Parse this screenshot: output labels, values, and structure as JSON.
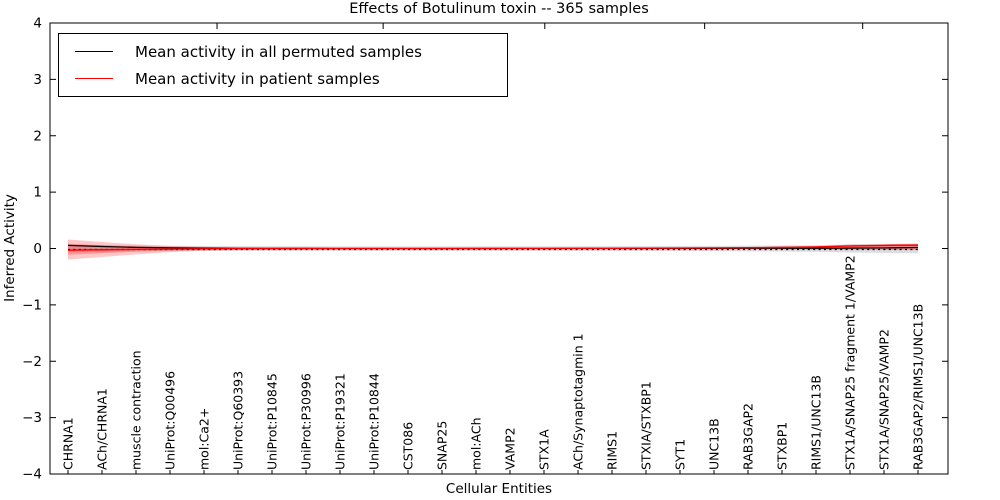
{
  "chart_data": {
    "type": "line",
    "title": "Effects of Botulinum toxin -- 365 samples",
    "xlabel": "Cellular Entities",
    "ylabel": "Inferred Activity",
    "ylim": [
      -4,
      4
    ],
    "ytick_values": [
      4,
      3,
      2,
      1,
      0,
      -1,
      -2,
      -3,
      -4
    ],
    "ytick_labels": [
      "4",
      "3",
      "2",
      "1",
      "0",
      "−1",
      "−2",
      "−3",
      "−4"
    ],
    "grid": false,
    "legend_position": "upper-left",
    "categories": [
      "CHRNA1",
      "ACh/CHRNA1",
      "muscle contraction",
      "UniProt:Q00496",
      "mol:Ca2+",
      "UniProt:Q60393",
      "UniProt:P10845",
      "UniProt:P30996",
      "UniProt:P19321",
      "UniProt:P10844",
      "CST086",
      "SNAP25",
      "mol:ACh",
      "VAMP2",
      "STX1A",
      "ACh/Synaptotagmin 1",
      "RIMS1",
      "STXIA/STXBP1",
      "SYT1",
      "UNC13B",
      "RAB3GAP2",
      "STXBP1",
      "RIMS1/UNC13B",
      "STX1A/SNAP25 fragment 1/VAMP2",
      "STX1A/SNAP25/VAMP2",
      "RAB3GAP2/RIMS1/UNC13B"
    ],
    "series": [
      {
        "name": "Mean activity in all permuted samples",
        "color": "#000000",
        "values": [
          0.055,
          0.035,
          0.02,
          0.012,
          0.006,
          0.003,
          0.002,
          0.002,
          0.001,
          0.001,
          0.001,
          0.001,
          0.001,
          0.001,
          0.001,
          0.001,
          0.001,
          0.002,
          0.002,
          0.002,
          0.003,
          0.003,
          0.004,
          0.006,
          0.01,
          0.018
        ]
      },
      {
        "name": "Mean activity in patient samples",
        "color": "#ff0000",
        "values": [
          -0.03,
          -0.022,
          -0.015,
          -0.01,
          -0.006,
          -0.004,
          -0.003,
          -0.002,
          -0.002,
          -0.002,
          -0.001,
          -0.001,
          0.0,
          0.001,
          0.002,
          0.003,
          0.004,
          0.006,
          0.008,
          0.01,
          0.014,
          0.02,
          0.028,
          0.045,
          0.055,
          0.06
        ]
      }
    ],
    "bands": [
      {
        "name": "permuted-samples-spread",
        "color": "rgba(130,130,150,0.28)",
        "upper": [
          0.065,
          0.058,
          0.052,
          0.048,
          0.045,
          0.043,
          0.042,
          0.041,
          0.04,
          0.04,
          0.04,
          0.04,
          0.04,
          0.04,
          0.04,
          0.041,
          0.042,
          0.043,
          0.045,
          0.047,
          0.05,
          0.054,
          0.06,
          0.07,
          0.078,
          0.085
        ],
        "lower": [
          -0.065,
          -0.058,
          -0.052,
          -0.048,
          -0.045,
          -0.043,
          -0.042,
          -0.041,
          -0.04,
          -0.04,
          -0.04,
          -0.04,
          -0.04,
          -0.04,
          -0.04,
          -0.041,
          -0.042,
          -0.043,
          -0.045,
          -0.047,
          -0.05,
          -0.054,
          -0.06,
          -0.07,
          -0.078,
          -0.085
        ]
      },
      {
        "name": "patient-samples-spread-outer",
        "color": "rgba(255,70,70,0.30)",
        "upper": [
          0.16,
          0.115,
          0.075,
          0.045,
          0.028,
          0.02,
          0.016,
          0.014,
          0.013,
          0.012,
          0.012,
          0.012,
          0.012,
          0.012,
          0.012,
          0.013,
          0.014,
          0.016,
          0.018,
          0.02,
          0.024,
          0.03,
          0.042,
          0.07,
          0.078,
          0.085
        ],
        "lower": [
          -0.195,
          -0.15,
          -0.105,
          -0.065,
          -0.04,
          -0.026,
          -0.02,
          -0.017,
          -0.015,
          -0.014,
          -0.014,
          -0.014,
          -0.014,
          -0.014,
          -0.014,
          -0.014,
          -0.014,
          -0.014,
          -0.015,
          -0.015,
          -0.016,
          -0.018,
          -0.02,
          -0.025,
          -0.026,
          -0.028
        ]
      },
      {
        "name": "patient-samples-spread-inner",
        "color": "rgba(255,40,40,0.30)",
        "upper": [
          0.085,
          0.06,
          0.04,
          0.025,
          0.016,
          0.011,
          0.009,
          0.008,
          0.007,
          0.007,
          0.007,
          0.007,
          0.007,
          0.007,
          0.007,
          0.007,
          0.008,
          0.009,
          0.01,
          0.012,
          0.014,
          0.018,
          0.026,
          0.045,
          0.05,
          0.055
        ],
        "lower": [
          -0.11,
          -0.082,
          -0.055,
          -0.035,
          -0.022,
          -0.015,
          -0.012,
          -0.01,
          -0.009,
          -0.008,
          -0.008,
          -0.008,
          -0.008,
          -0.008,
          -0.008,
          -0.008,
          -0.008,
          -0.008,
          -0.009,
          -0.009,
          -0.01,
          -0.011,
          -0.013,
          -0.016,
          -0.017,
          -0.018
        ]
      }
    ],
    "zero_line": {
      "value": -0.018,
      "style": "dotted",
      "color": "#000000"
    }
  }
}
